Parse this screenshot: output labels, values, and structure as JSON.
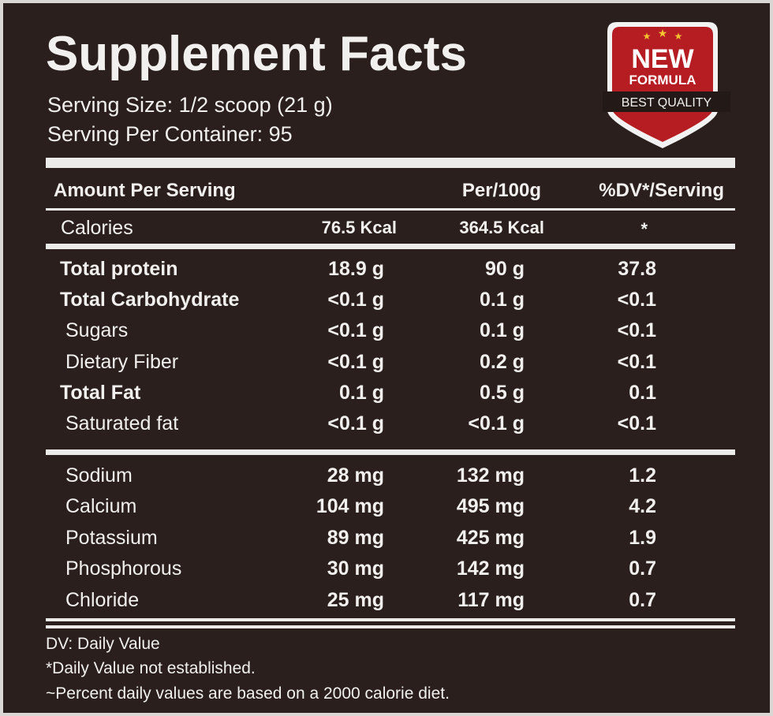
{
  "header": {
    "title": "Supplement Facts",
    "serving_size": "Serving Size: 1/2 scoop (21 g)",
    "servings_per_container": "Serving Per Container: 95"
  },
  "badge": {
    "line1": "NEW",
    "line2": "FORMULA",
    "ribbon": "BEST QUALITY"
  },
  "table": {
    "header": [
      "Amount Per Serving",
      "Per/100g",
      "%DV*/Serving"
    ],
    "calories": [
      "Calories",
      "76.5 Kcal",
      "364.5 Kcal",
      "*"
    ],
    "rows": [
      [
        "Total protein",
        "18.9 g",
        "90 g",
        "37.8"
      ],
      [
        "Total Carbohydrate",
        "<0.1 g",
        "0.1 g",
        "<0.1"
      ],
      [
        "Sugars",
        "<0.1 g",
        "0.1 g",
        "<0.1"
      ],
      [
        "Dietary Fiber",
        "<0.1 g",
        "0.2 g",
        "<0.1"
      ],
      [
        "Total Fat",
        "0.1 g",
        "0.5 g",
        "0.1"
      ],
      [
        "Saturated fat",
        "<0.1 g",
        "<0.1 g",
        "<0.1"
      ],
      [
        "Sodium",
        "28 mg",
        "132 mg",
        "1.2"
      ],
      [
        "Calcium",
        "104 mg",
        "495 mg",
        "4.2"
      ],
      [
        "Potassium",
        "89 mg",
        "425 mg",
        "1.9"
      ],
      [
        "Phosphorous",
        "30 mg",
        "142 mg",
        "0.7"
      ],
      [
        "Chloride",
        "25 mg",
        "117 mg",
        "0.7"
      ]
    ]
  },
  "footnotes": [
    "DV: Daily Value",
    "*Daily Value not established.",
    "~Percent daily values are based on a 2000 calorie diet."
  ]
}
